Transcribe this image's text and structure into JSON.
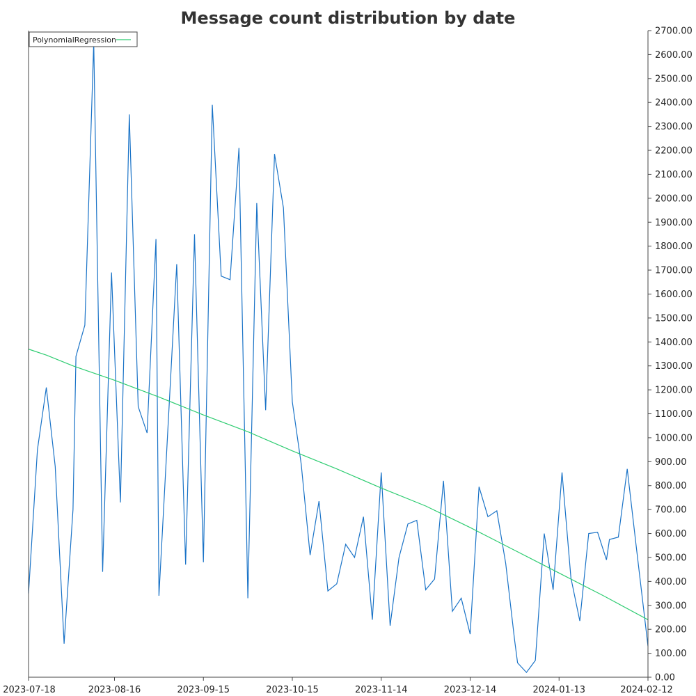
{
  "chart_data": {
    "type": "line",
    "title": "Message count distribution by date",
    "xlabel": "",
    "ylabel": "",
    "x_axis": {
      "type": "date",
      "range": [
        "2023-07-18",
        "2024-02-12"
      ],
      "ticks": [
        "2023-07-18",
        "2023-08-16",
        "2023-09-15",
        "2023-10-15",
        "2023-11-14",
        "2023-12-14",
        "2024-01-13",
        "2024-02-12"
      ]
    },
    "y_axis": {
      "position": "right",
      "range": [
        0,
        2700
      ],
      "ticks": [
        "0.00",
        "100.00",
        "200.00",
        "300.00",
        "400.00",
        "500.00",
        "600.00",
        "700.00",
        "800.00",
        "900.00",
        "1000.00",
        "1100.00",
        "1200.00",
        "1300.00",
        "1400.00",
        "1500.00",
        "1600.00",
        "1700.00",
        "1800.00",
        "1900.00",
        "2000.00",
        "2100.00",
        "2200.00",
        "2300.00",
        "2400.00",
        "2500.00",
        "2600.00",
        "2700.00"
      ]
    },
    "grid": false,
    "legend": {
      "placement": "top-left",
      "entries": [
        {
          "label": "PolynomialRegression",
          "color": "#2ecc71"
        }
      ]
    },
    "series": [
      {
        "name": "",
        "color": "#1a73c7",
        "points": [
          {
            "x": "2023-07-18",
            "y": 350
          },
          {
            "x": "2023-07-21",
            "y": 950
          },
          {
            "x": "2023-07-24",
            "y": 1210
          },
          {
            "x": "2023-07-27",
            "y": 880
          },
          {
            "x": "2023-07-30",
            "y": 140
          },
          {
            "x": "2023-08-02",
            "y": 700
          },
          {
            "x": "2023-08-03",
            "y": 1340
          },
          {
            "x": "2023-08-06",
            "y": 1470
          },
          {
            "x": "2023-08-09",
            "y": 2650
          },
          {
            "x": "2023-08-12",
            "y": 440
          },
          {
            "x": "2023-08-15",
            "y": 1690
          },
          {
            "x": "2023-08-18",
            "y": 730
          },
          {
            "x": "2023-08-21",
            "y": 2350
          },
          {
            "x": "2023-08-24",
            "y": 1130
          },
          {
            "x": "2023-08-27",
            "y": 1020
          },
          {
            "x": "2023-08-30",
            "y": 1830
          },
          {
            "x": "2023-08-31",
            "y": 340
          },
          {
            "x": "2023-09-06",
            "y": 1725
          },
          {
            "x": "2023-09-09",
            "y": 470
          },
          {
            "x": "2023-09-12",
            "y": 1850
          },
          {
            "x": "2023-09-15",
            "y": 480
          },
          {
            "x": "2023-09-18",
            "y": 2390
          },
          {
            "x": "2023-09-21",
            "y": 1675
          },
          {
            "x": "2023-09-24",
            "y": 1660
          },
          {
            "x": "2023-09-27",
            "y": 2210
          },
          {
            "x": "2023-09-30",
            "y": 330
          },
          {
            "x": "2023-10-03",
            "y": 1980
          },
          {
            "x": "2023-10-06",
            "y": 1115
          },
          {
            "x": "2023-10-09",
            "y": 2185
          },
          {
            "x": "2023-10-12",
            "y": 1960
          },
          {
            "x": "2023-10-15",
            "y": 1150
          },
          {
            "x": "2023-10-18",
            "y": 890
          },
          {
            "x": "2023-10-21",
            "y": 510
          },
          {
            "x": "2023-10-24",
            "y": 735
          },
          {
            "x": "2023-10-27",
            "y": 360
          },
          {
            "x": "2023-10-30",
            "y": 390
          },
          {
            "x": "2023-11-02",
            "y": 555
          },
          {
            "x": "2023-11-05",
            "y": 500
          },
          {
            "x": "2023-11-08",
            "y": 670
          },
          {
            "x": "2023-11-11",
            "y": 240
          },
          {
            "x": "2023-11-14",
            "y": 855
          },
          {
            "x": "2023-11-17",
            "y": 215
          },
          {
            "x": "2023-11-20",
            "y": 500
          },
          {
            "x": "2023-11-23",
            "y": 640
          },
          {
            "x": "2023-11-26",
            "y": 655
          },
          {
            "x": "2023-11-29",
            "y": 365
          },
          {
            "x": "2023-12-02",
            "y": 410
          },
          {
            "x": "2023-12-05",
            "y": 820
          },
          {
            "x": "2023-12-08",
            "y": 275
          },
          {
            "x": "2023-12-11",
            "y": 330
          },
          {
            "x": "2023-12-14",
            "y": 180
          },
          {
            "x": "2023-12-17",
            "y": 795
          },
          {
            "x": "2023-12-20",
            "y": 670
          },
          {
            "x": "2023-12-23",
            "y": 695
          },
          {
            "x": "2023-12-26",
            "y": 475
          },
          {
            "x": "2023-12-29",
            "y": 155
          },
          {
            "x": "2023-12-30",
            "y": 60
          },
          {
            "x": "2024-01-02",
            "y": 20
          },
          {
            "x": "2024-01-05",
            "y": 70
          },
          {
            "x": "2024-01-08",
            "y": 600
          },
          {
            "x": "2024-01-11",
            "y": 365
          },
          {
            "x": "2024-01-14",
            "y": 855
          },
          {
            "x": "2024-01-17",
            "y": 415
          },
          {
            "x": "2024-01-20",
            "y": 235
          },
          {
            "x": "2024-01-23",
            "y": 600
          },
          {
            "x": "2024-01-26",
            "y": 605
          },
          {
            "x": "2024-01-29",
            "y": 490
          },
          {
            "x": "2024-01-30",
            "y": 575
          },
          {
            "x": "2024-02-02",
            "y": 585
          },
          {
            "x": "2024-02-05",
            "y": 870
          },
          {
            "x": "2024-02-08",
            "y": 550
          },
          {
            "x": "2024-02-12",
            "y": 130
          }
        ]
      },
      {
        "name": "PolynomialRegression",
        "color": "#2ecc71",
        "points": [
          {
            "x": "2023-07-18",
            "y": 1370
          },
          {
            "x": "2023-07-24",
            "y": 1345
          },
          {
            "x": "2023-08-02",
            "y": 1300
          },
          {
            "x": "2023-08-16",
            "y": 1240
          },
          {
            "x": "2023-08-31",
            "y": 1170
          },
          {
            "x": "2023-09-15",
            "y": 1095
          },
          {
            "x": "2023-09-30",
            "y": 1025
          },
          {
            "x": "2023-10-15",
            "y": 945
          },
          {
            "x": "2023-10-30",
            "y": 870
          },
          {
            "x": "2023-11-14",
            "y": 790
          },
          {
            "x": "2023-11-29",
            "y": 715
          },
          {
            "x": "2023-12-14",
            "y": 625
          },
          {
            "x": "2023-12-29",
            "y": 530
          },
          {
            "x": "2024-01-13",
            "y": 435
          },
          {
            "x": "2024-01-28",
            "y": 340
          },
          {
            "x": "2024-02-12",
            "y": 240
          }
        ]
      }
    ]
  }
}
